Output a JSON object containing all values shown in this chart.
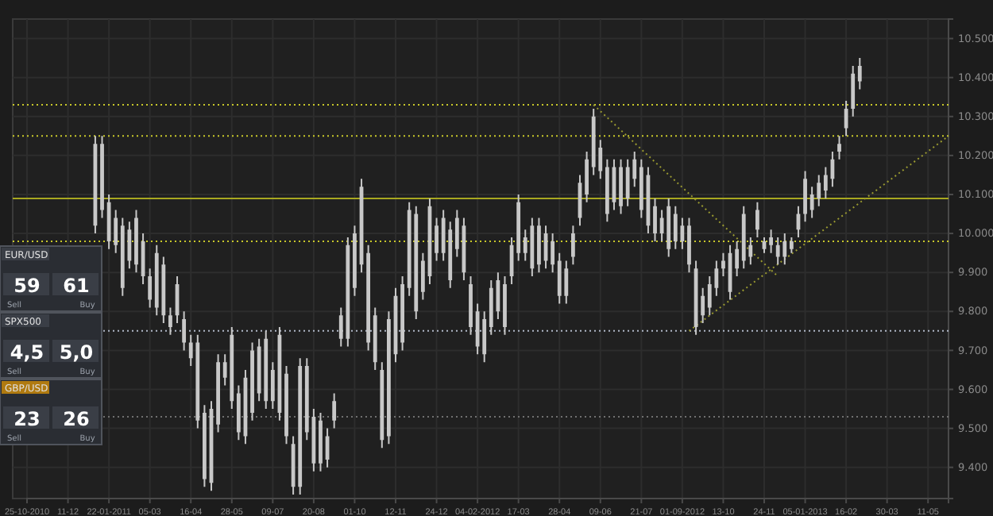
{
  "chart_data": {
    "type": "candlestick",
    "color": "#c8c8c8",
    "grid": true,
    "marker": "none",
    "categories": [
      "25-10-2010",
      null,
      null,
      null,
      null,
      null,
      "11-12",
      null,
      null,
      null,
      null,
      null,
      "22-01-2011",
      null,
      null,
      null,
      null,
      null,
      "05-03",
      null,
      null,
      null,
      null,
      null,
      "16-04",
      null,
      null,
      null,
      null,
      null,
      "28-05",
      null,
      null,
      null,
      null,
      null,
      "09-07",
      null,
      null,
      null,
      null,
      null,
      "20-08",
      null,
      null,
      null,
      null,
      null,
      "01-10",
      null,
      null,
      null,
      null,
      null,
      "12-11",
      null,
      null,
      null,
      null,
      null,
      "24-12",
      null,
      null,
      null,
      null,
      null,
      "04-02-2012",
      null,
      null,
      null,
      null,
      null,
      "17-03",
      null,
      null,
      null,
      null,
      null,
      "28-04",
      null,
      null,
      null,
      null,
      null,
      "09-06",
      null,
      null,
      null,
      null,
      null,
      "21-07",
      null,
      null,
      null,
      null,
      null,
      "01-09-2012",
      null,
      null,
      null,
      null,
      null,
      "13-10",
      null,
      null,
      null,
      null,
      null,
      "24-11",
      null,
      null,
      null,
      null,
      null,
      "05-01-2013",
      null,
      null,
      null,
      null,
      null,
      "16-02",
      null,
      null,
      null,
      null,
      null,
      "30-03",
      null,
      null,
      null,
      null,
      null,
      "11-05",
      null,
      null,
      null
    ],
    "ohlc": [
      null,
      null,
      null,
      null,
      null,
      null,
      null,
      null,
      null,
      null,
      [
        10020,
        10250,
        10000,
        10230
      ],
      [
        10230,
        10250,
        10040,
        10060
      ],
      [
        10080,
        10100,
        9960,
        9980
      ],
      [
        10040,
        10060,
        9950,
        9970
      ],
      [
        9860,
        10040,
        9840,
        10020
      ],
      [
        9930,
        10030,
        9910,
        10010
      ],
      [
        10040,
        10060,
        9900,
        9920
      ],
      [
        9980,
        10000,
        9870,
        9890
      ],
      [
        9830,
        9910,
        9810,
        9890
      ],
      [
        9950,
        9970,
        9790,
        9810
      ],
      [
        9920,
        9940,
        9770,
        9790
      ],
      [
        9760,
        9810,
        9740,
        9790
      ],
      [
        9870,
        9890,
        9770,
        9790
      ],
      [
        9780,
        9800,
        9700,
        9720
      ],
      [
        9720,
        9740,
        9660,
        9680
      ],
      [
        9720,
        9740,
        9500,
        9520
      ],
      [
        9540,
        9560,
        9350,
        9370
      ],
      [
        9360,
        9570,
        9340,
        9550
      ],
      [
        9510,
        9690,
        9490,
        9670
      ],
      [
        9630,
        9690,
        9610,
        9670
      ],
      [
        9740,
        9760,
        9550,
        9570
      ],
      [
        9490,
        9610,
        9470,
        9590
      ],
      [
        9480,
        9650,
        9460,
        9630
      ],
      [
        9540,
        9720,
        9520,
        9700
      ],
      [
        9710,
        9730,
        9570,
        9590
      ],
      [
        9730,
        9750,
        9550,
        9570
      ],
      [
        9570,
        9670,
        9550,
        9650
      ],
      [
        9740,
        9760,
        9520,
        9540
      ],
      [
        9640,
        9660,
        9460,
        9480
      ],
      [
        9350,
        9480,
        9330,
        9460
      ],
      [
        9660,
        9680,
        9330,
        9350
      ],
      [
        9660,
        9680,
        9470,
        9490
      ],
      [
        9530,
        9550,
        9390,
        9410
      ],
      [
        9410,
        9540,
        9390,
        9520
      ],
      [
        9420,
        9500,
        9400,
        9480
      ],
      [
        9520,
        9590,
        9500,
        9570
      ],
      [
        9730,
        9810,
        9710,
        9790
      ],
      [
        9730,
        9990,
        9710,
        9970
      ],
      [
        9860,
        10020,
        9840,
        10000
      ],
      [
        10120,
        10140,
        9900,
        9920
      ],
      [
        9950,
        9970,
        9700,
        9720
      ],
      [
        9790,
        9810,
        9650,
        9670
      ],
      [
        9470,
        9670,
        9450,
        9650
      ],
      [
        9480,
        9800,
        9460,
        9780
      ],
      [
        9690,
        9860,
        9670,
        9840
      ],
      [
        9720,
        9890,
        9700,
        9870
      ],
      [
        10060,
        10080,
        9840,
        9860
      ],
      [
        10050,
        10070,
        9780,
        9800
      ],
      [
        9850,
        9950,
        9830,
        9930
      ],
      [
        10070,
        10090,
        9870,
        9890
      ],
      [
        9950,
        10040,
        9930,
        10020
      ],
      [
        10040,
        10060,
        9930,
        9950
      ],
      [
        10010,
        10030,
        9860,
        9880
      ],
      [
        10040,
        10060,
        9940,
        9960
      ],
      [
        10020,
        10040,
        9880,
        9900
      ],
      [
        9870,
        9890,
        9740,
        9760
      ],
      [
        9800,
        9820,
        9690,
        9710
      ],
      [
        9690,
        9800,
        9670,
        9780
      ],
      [
        9760,
        9880,
        9740,
        9860
      ],
      [
        9880,
        9900,
        9780,
        9800
      ],
      [
        9760,
        9890,
        9740,
        9870
      ],
      [
        9890,
        9990,
        9870,
        9970
      ],
      [
        10080,
        10100,
        9930,
        9950
      ],
      [
        9950,
        10010,
        9930,
        9990
      ],
      [
        10020,
        10040,
        9890,
        9910
      ],
      [
        10020,
        10040,
        9900,
        9920
      ],
      [
        10000,
        10020,
        9910,
        9930
      ],
      [
        9980,
        10000,
        9900,
        9920
      ],
      [
        9930,
        9950,
        9820,
        9840
      ],
      [
        9840,
        9930,
        9820,
        9910
      ],
      [
        9940,
        10020,
        9920,
        10000
      ],
      [
        10040,
        10150,
        10020,
        10130
      ],
      [
        10100,
        10210,
        10080,
        10190
      ],
      [
        10300,
        10320,
        10150,
        10170
      ],
      [
        10220,
        10240,
        10140,
        10160
      ],
      [
        10050,
        10190,
        10030,
        10170
      ],
      [
        10170,
        10190,
        10060,
        10080
      ],
      [
        10070,
        10190,
        10050,
        10170
      ],
      [
        10090,
        10190,
        10070,
        10170
      ],
      [
        10190,
        10210,
        10120,
        10140
      ],
      [
        10170,
        10190,
        10040,
        10060
      ],
      [
        10150,
        10170,
        10000,
        10020
      ],
      [
        10070,
        10090,
        9980,
        10000
      ],
      [
        10040,
        10060,
        9980,
        10000
      ],
      [
        9960,
        10090,
        9940,
        10070
      ],
      [
        10050,
        10070,
        9960,
        9980
      ],
      [
        10020,
        10040,
        9960,
        9980
      ],
      [
        10020,
        10040,
        9900,
        9920
      ],
      [
        9760,
        9930,
        9740,
        9910
      ],
      [
        9790,
        9860,
        9770,
        9840
      ],
      [
        9810,
        9890,
        9790,
        9870
      ],
      [
        9860,
        9930,
        9840,
        9910
      ],
      [
        9930,
        9950,
        9890,
        9910
      ],
      [
        9850,
        9970,
        9830,
        9950
      ],
      [
        9910,
        9980,
        9890,
        9960
      ],
      [
        10050,
        10070,
        9910,
        9930
      ],
      [
        9940,
        9990,
        9920,
        9970
      ],
      [
        10060,
        10080,
        9990,
        10010
      ],
      [
        9960,
        9990,
        9950,
        9980
      ],
      [
        9990,
        10010,
        9950,
        9970
      ],
      [
        9940,
        9990,
        9920,
        9970
      ],
      [
        9940,
        10000,
        9920,
        9980
      ],
      [
        9960,
        9990,
        9950,
        9980
      ],
      [
        10010,
        10070,
        9990,
        10050
      ],
      [
        10050,
        10160,
        10030,
        10140
      ],
      [
        10060,
        10120,
        10040,
        10100
      ],
      [
        10090,
        10150,
        10070,
        10130
      ],
      [
        10110,
        10170,
        10090,
        10150
      ],
      [
        10140,
        10210,
        10120,
        10190
      ],
      [
        10210,
        10250,
        10190,
        10230
      ],
      [
        10270,
        10340,
        10250,
        10320
      ],
      [
        10320,
        10430,
        10300,
        10410
      ],
      [
        10390,
        10450,
        10370,
        10430
      ],
      null,
      null,
      null,
      null,
      null,
      null,
      null,
      null,
      null,
      null,
      null,
      null,
      null
    ],
    "series": [
      {
        "type": "line",
        "color": "#9a9a30",
        "line_style": "dotted",
        "values": [
          null,
          null,
          null,
          null,
          null,
          null,
          null,
          null,
          null,
          null,
          null,
          null,
          null,
          null,
          null,
          null,
          null,
          null,
          null,
          null,
          null,
          null,
          null,
          null,
          null,
          null,
          null,
          null,
          null,
          null,
          null,
          null,
          null,
          null,
          null,
          null,
          null,
          null,
          null,
          null,
          null,
          null,
          null,
          null,
          null,
          null,
          null,
          null,
          null,
          null,
          null,
          null,
          null,
          null,
          null,
          null,
          null,
          null,
          null,
          null,
          null,
          null,
          null,
          null,
          null,
          null,
          null,
          null,
          null,
          null,
          null,
          null,
          null,
          null,
          null,
          null,
          null,
          null,
          null,
          null,
          null,
          null,
          null,
          10330,
          null,
          null,
          null,
          null,
          null,
          null,
          null,
          null,
          null,
          null,
          null,
          null,
          null,
          null,
          null,
          null,
          null,
          null,
          null,
          null,
          null,
          null,
          null,
          null,
          null,
          null,
          9890,
          null,
          null,
          null,
          null,
          null,
          null,
          null,
          null,
          null,
          null,
          null,
          null,
          null,
          null,
          null,
          null,
          null,
          null,
          null,
          null,
          null,
          null,
          null,
          null,
          null
        ]
      },
      {
        "type": "line",
        "color": "#9a9a30",
        "line_style": "dotted",
        "values": [
          null,
          null,
          null,
          null,
          null,
          null,
          null,
          null,
          null,
          null,
          null,
          null,
          null,
          null,
          null,
          null,
          null,
          null,
          null,
          null,
          null,
          null,
          null,
          null,
          null,
          null,
          null,
          null,
          null,
          null,
          null,
          null,
          null,
          null,
          null,
          null,
          null,
          null,
          null,
          null,
          null,
          null,
          null,
          null,
          null,
          null,
          null,
          null,
          null,
          null,
          null,
          null,
          null,
          null,
          null,
          null,
          null,
          null,
          null,
          null,
          null,
          null,
          null,
          null,
          null,
          null,
          null,
          null,
          null,
          null,
          null,
          null,
          null,
          null,
          null,
          null,
          null,
          null,
          null,
          null,
          null,
          null,
          null,
          null,
          null,
          null,
          null,
          null,
          null,
          null,
          null,
          null,
          null,
          null,
          null,
          null,
          null,
          9750,
          null,
          null,
          null,
          null,
          null,
          null,
          null,
          null,
          null,
          null,
          null,
          null,
          null,
          null,
          null,
          null,
          null,
          null,
          null,
          null,
          null,
          null,
          null,
          null,
          null,
          null,
          null,
          null,
          null,
          null,
          null,
          null,
          null,
          null,
          null,
          null,
          null,
          10250
        ]
      }
    ],
    "ref_lines": [
      {
        "axis": "y",
        "value": 10330,
        "color": "#c8c82a",
        "line_style": "dotted"
      },
      {
        "axis": "y",
        "value": 10250,
        "color": "#c8c82a",
        "line_style": "dotted"
      },
      {
        "axis": "y",
        "value": 10090,
        "color": "#a8a820",
        "line_style": "solid"
      },
      {
        "axis": "y",
        "value": 9980,
        "color": "#c8c82a",
        "line_style": "dotted"
      },
      {
        "axis": "y",
        "value": 9750,
        "color": "#b0b8c8",
        "line_style": "dotted"
      },
      {
        "axis": "y",
        "value": 9530,
        "color": "#707070",
        "line_style": "dotted"
      }
    ],
    "ylim": [
      9320,
      10550
    ],
    "yticks": [
      {
        "value": 9400,
        "label": "9.400"
      },
      {
        "value": 9500,
        "label": "9.500"
      },
      {
        "value": 9600,
        "label": "9.600"
      },
      {
        "value": 9700,
        "label": "9.700"
      },
      {
        "value": 9800,
        "label": "9.800"
      },
      {
        "value": 9900,
        "label": "9.900"
      },
      {
        "value": 10000,
        "label": "10.000"
      },
      {
        "value": 10100,
        "label": "10.100"
      },
      {
        "value": 10200,
        "label": "10.200"
      },
      {
        "value": 10300,
        "label": "10.300"
      },
      {
        "value": 10400,
        "label": "10.400"
      },
      {
        "value": 10500,
        "label": "10.500"
      }
    ],
    "annotations": [
      "EUR/USD",
      "59",
      "61",
      "Sell",
      "Buy",
      "SPX500",
      "4,5",
      "5,0",
      "Sell",
      "Buy",
      "GBP/USD",
      "23",
      "26",
      "Sell",
      "Buy"
    ]
  }
}
